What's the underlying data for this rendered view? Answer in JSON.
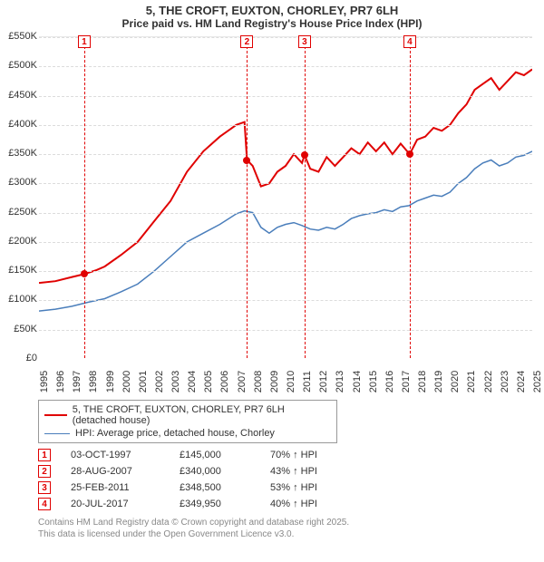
{
  "title": "5, THE CROFT, EUXTON, CHORLEY, PR7 6LH",
  "subtitle": "Price paid vs. HM Land Registry's House Price Index (HPI)",
  "chart": {
    "type": "line",
    "background_color": "#ffffff",
    "grid_color": "#dcdcdc",
    "axis_label_fontsize": 11,
    "x": {
      "min": 1995,
      "max": 2025,
      "tick_step": 1
    },
    "y": {
      "min": 0,
      "max": 550000,
      "tick_step": 50000,
      "tick_format_prefix": "£",
      "tick_format_suffix": "K",
      "tick_format_divisor": 1000
    },
    "series": [
      {
        "id": "price",
        "label": "5, THE CROFT, EUXTON, CHORLEY, PR7 6LH (detached house)",
        "color": "#e00000",
        "line_width": 2,
        "points": [
          [
            1995,
            130000
          ],
          [
            1996,
            133000
          ],
          [
            1997,
            140000
          ],
          [
            1997.75,
            145000
          ],
          [
            1998.5,
            152000
          ],
          [
            1999,
            158000
          ],
          [
            2000,
            178000
          ],
          [
            2001,
            200000
          ],
          [
            2002,
            235000
          ],
          [
            2003,
            270000
          ],
          [
            2004,
            320000
          ],
          [
            2005,
            355000
          ],
          [
            2006,
            380000
          ],
          [
            2007,
            400000
          ],
          [
            2007.5,
            405000
          ],
          [
            2007.65,
            340000
          ],
          [
            2008,
            330000
          ],
          [
            2008.5,
            295000
          ],
          [
            2009,
            300000
          ],
          [
            2009.5,
            320000
          ],
          [
            2010,
            330000
          ],
          [
            2010.5,
            350000
          ],
          [
            2011,
            335000
          ],
          [
            2011.15,
            348500
          ],
          [
            2011.5,
            325000
          ],
          [
            2012,
            320000
          ],
          [
            2012.5,
            345000
          ],
          [
            2013,
            330000
          ],
          [
            2013.5,
            345000
          ],
          [
            2014,
            360000
          ],
          [
            2014.5,
            350000
          ],
          [
            2015,
            370000
          ],
          [
            2015.5,
            355000
          ],
          [
            2016,
            370000
          ],
          [
            2016.5,
            350000
          ],
          [
            2017,
            368000
          ],
          [
            2017.55,
            349950
          ],
          [
            2018,
            375000
          ],
          [
            2018.5,
            380000
          ],
          [
            2019,
            395000
          ],
          [
            2019.5,
            390000
          ],
          [
            2020,
            400000
          ],
          [
            2020.5,
            420000
          ],
          [
            2021,
            435000
          ],
          [
            2021.5,
            460000
          ],
          [
            2022,
            470000
          ],
          [
            2022.5,
            480000
          ],
          [
            2023,
            460000
          ],
          [
            2023.5,
            475000
          ],
          [
            2024,
            490000
          ],
          [
            2024.5,
            485000
          ],
          [
            2025,
            495000
          ]
        ]
      },
      {
        "id": "hpi",
        "label": "HPI: Average price, detached house, Chorley",
        "color": "#4a7ebb",
        "line_width": 1.5,
        "points": [
          [
            1995,
            82000
          ],
          [
            1996,
            85000
          ],
          [
            1997,
            90000
          ],
          [
            1998,
            97000
          ],
          [
            1999,
            103000
          ],
          [
            2000,
            115000
          ],
          [
            2001,
            128000
          ],
          [
            2002,
            150000
          ],
          [
            2003,
            175000
          ],
          [
            2004,
            200000
          ],
          [
            2005,
            215000
          ],
          [
            2006,
            230000
          ],
          [
            2007,
            248000
          ],
          [
            2007.5,
            253000
          ],
          [
            2008,
            250000
          ],
          [
            2008.5,
            225000
          ],
          [
            2009,
            215000
          ],
          [
            2009.5,
            225000
          ],
          [
            2010,
            230000
          ],
          [
            2010.5,
            233000
          ],
          [
            2011,
            228000
          ],
          [
            2011.5,
            222000
          ],
          [
            2012,
            220000
          ],
          [
            2012.5,
            225000
          ],
          [
            2013,
            222000
          ],
          [
            2013.5,
            230000
          ],
          [
            2014,
            240000
          ],
          [
            2014.5,
            245000
          ],
          [
            2015,
            248000
          ],
          [
            2015.5,
            250000
          ],
          [
            2016,
            255000
          ],
          [
            2016.5,
            252000
          ],
          [
            2017,
            260000
          ],
          [
            2017.5,
            262000
          ],
          [
            2018,
            270000
          ],
          [
            2018.5,
            275000
          ],
          [
            2019,
            280000
          ],
          [
            2019.5,
            278000
          ],
          [
            2020,
            285000
          ],
          [
            2020.5,
            300000
          ],
          [
            2021,
            310000
          ],
          [
            2021.5,
            325000
          ],
          [
            2022,
            335000
          ],
          [
            2022.5,
            340000
          ],
          [
            2023,
            330000
          ],
          [
            2023.5,
            335000
          ],
          [
            2024,
            345000
          ],
          [
            2024.5,
            348000
          ],
          [
            2025,
            355000
          ]
        ]
      }
    ],
    "events": [
      {
        "n": "1",
        "x": 1997.75,
        "price_y": 145000
      },
      {
        "n": "2",
        "x": 2007.65,
        "price_y": 340000
      },
      {
        "n": "3",
        "x": 2011.15,
        "price_y": 348500
      },
      {
        "n": "4",
        "x": 2017.55,
        "price_y": 349950
      }
    ],
    "event_line_color": "#e00000",
    "event_box_color": "#e00000",
    "event_marker_color": "#e00000"
  },
  "transactions": [
    {
      "n": "1",
      "date": "03-OCT-1997",
      "price": "£145,000",
      "pct": "70% ↑ HPI"
    },
    {
      "n": "2",
      "date": "28-AUG-2007",
      "price": "£340,000",
      "pct": "43% ↑ HPI"
    },
    {
      "n": "3",
      "date": "25-FEB-2011",
      "price": "£348,500",
      "pct": "53% ↑ HPI"
    },
    {
      "n": "4",
      "date": "20-JUL-2017",
      "price": "£349,950",
      "pct": "40% ↑ HPI"
    }
  ],
  "footer": {
    "line1": "Contains HM Land Registry data © Crown copyright and database right 2025.",
    "line2": "This data is licensed under the Open Government Licence v3.0."
  }
}
